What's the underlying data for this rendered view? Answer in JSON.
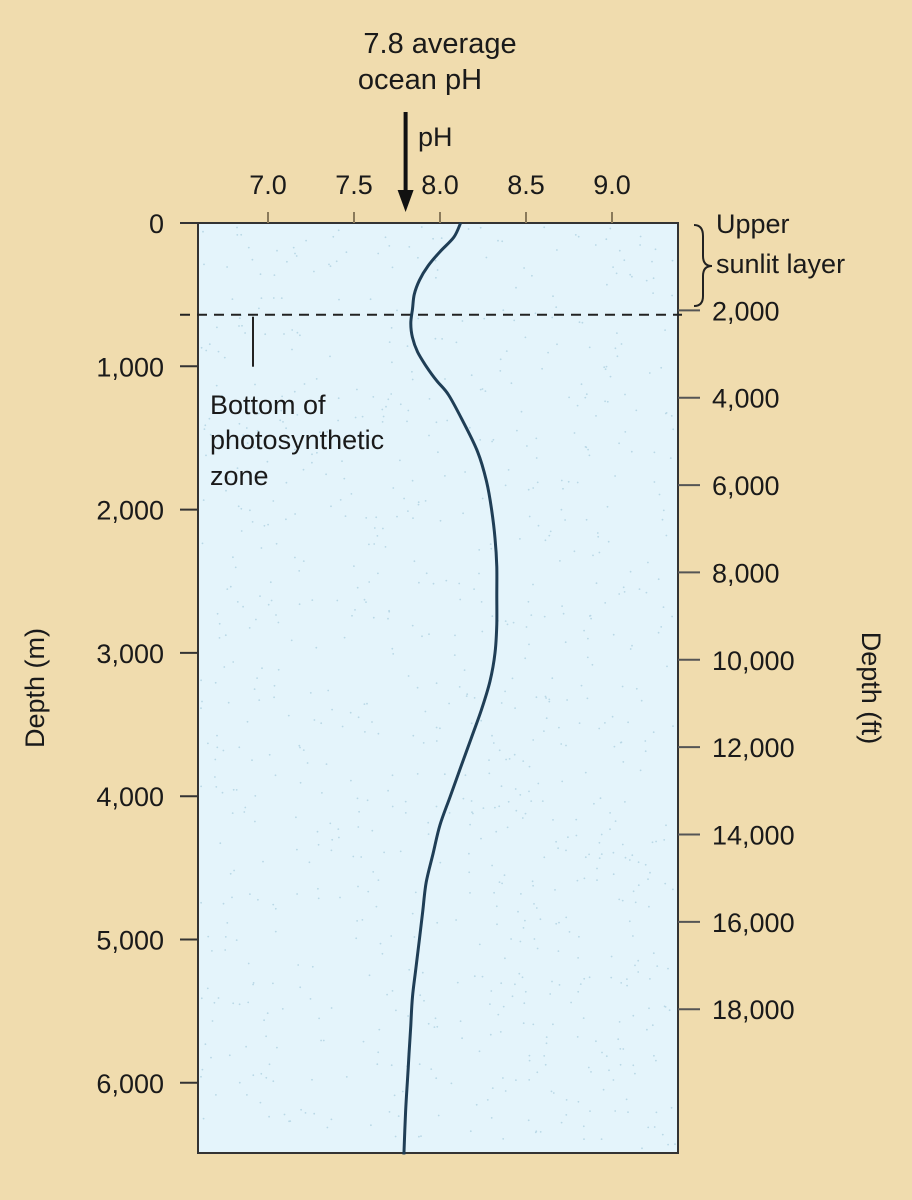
{
  "chart_data": {
    "type": "line",
    "orientation": "vertical-profile",
    "xlabel": "pH",
    "x_ticks": [
      "7.0",
      "7.5",
      "8.0",
      "8.5",
      "9.0"
    ],
    "x_tick_values": [
      7.0,
      7.5,
      8.0,
      8.5,
      9.0
    ],
    "ylabel_left": "Depth (m)",
    "y_ticks_left": [
      "0",
      "1,000",
      "2,000",
      "3,000",
      "4,000",
      "5,000",
      "6,000"
    ],
    "y_tick_values_left": [
      0,
      1000,
      2000,
      3000,
      4000,
      5000,
      6000
    ],
    "ylabel_right": "Depth (ft)",
    "y_ticks_right": [
      "2,000",
      "4,000",
      "6,000",
      "8,000",
      "10,000",
      "12,000",
      "14,000",
      "16,000",
      "18,000"
    ],
    "y_tick_values_right": [
      2000,
      4000,
      6000,
      8000,
      10000,
      12000,
      14000,
      16000,
      18000
    ],
    "ylim_m": [
      0,
      6500
    ],
    "xlim": [
      6.9,
      9.4
    ],
    "series": [
      {
        "depth_m": [
          0,
          100,
          200,
          300,
          400,
          500,
          600,
          700,
          800,
          900,
          1000,
          1100,
          1200,
          1400,
          1600,
          1800,
          2000,
          2200,
          2400,
          2600,
          2800,
          3000,
          3200,
          3400,
          3600,
          3800,
          4000,
          4200,
          4400,
          4600,
          4800,
          5000,
          5200,
          5400,
          5600,
          5800,
          6000,
          6200,
          6500
        ],
        "ph": [
          8.12,
          8.08,
          8.0,
          7.93,
          7.88,
          7.85,
          7.84,
          7.83,
          7.84,
          7.87,
          7.92,
          7.98,
          8.05,
          8.14,
          8.22,
          8.27,
          8.3,
          8.32,
          8.33,
          8.33,
          8.33,
          8.32,
          8.29,
          8.24,
          8.18,
          8.12,
          8.06,
          8.0,
          7.96,
          7.92,
          7.9,
          7.88,
          7.86,
          7.84,
          7.83,
          7.82,
          7.81,
          7.8,
          7.79
        ]
      }
    ],
    "annotations": {
      "average_ph_label_line1": "7.8 average",
      "average_ph_label_line2": "ocean pH",
      "average_ph_value": 7.8,
      "photic_label_line1": "Bottom of",
      "photic_label_line2": "photosynthetic",
      "photic_label_line3": "zone",
      "photic_depth_m": 640,
      "sunlit_label_line1": "Upper",
      "sunlit_label_line2": "sunlit layer"
    },
    "colors": {
      "background": "#f0dcae",
      "plot_fill": "#e4f4fb",
      "curve": "#1f3e56",
      "axis": "#333333",
      "text": "#1a1a1a"
    }
  }
}
